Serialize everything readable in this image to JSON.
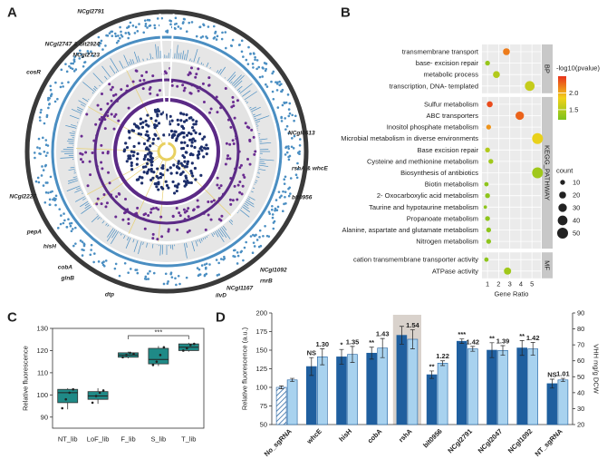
{
  "panel_labels": [
    "A",
    "B",
    "C",
    "D"
  ],
  "chart_data": [
    {
      "type": "circos",
      "labels": [
        "NCgl2791",
        "NCgl2747 & bit2924",
        "NCgl2723",
        "cosR",
        "NCgl0613",
        "rshA & whcE",
        "bit0956",
        "NCgl2227",
        "pepA",
        "hisH",
        "cobA",
        "glnB",
        "dtp",
        "ilvD",
        "NCgl1167",
        "rnrB",
        "NCgl1092"
      ]
    },
    {
      "type": "dotplot",
      "xlabel": "Gene Ratio",
      "xlim": [
        0.5,
        5.8
      ],
      "xticks": [
        1,
        2,
        3,
        4,
        5
      ],
      "facets": [
        {
          "name": "BP",
          "categories": [
            "transmembrane transport",
            "base- excision repair",
            "metabolic process",
            "transcription, DNA- templated"
          ],
          "x": [
            2.7,
            1.0,
            1.8,
            4.8
          ],
          "pvalue": [
            2.2,
            1.35,
            1.5,
            1.6
          ],
          "count": [
            20,
            10,
            20,
            40
          ]
        },
        {
          "name": "KEGG_PATHWAY",
          "categories": [
            "Sulfur metabolism",
            "ABC transporters",
            "Inositol phosphate metabolism",
            "Microbial metabolism in diverse environments",
            "Base excision repair",
            "Cysteine and methionine metabolism",
            "Biosynthesis of antibiotics",
            "Biotin metabolism",
            "2- Oxocarboxylic acid metabolism",
            "Taurine and hypotaurine metabolism",
            "Propanoate metabolism",
            "Alanine, aspartate and glutamate metabolism",
            "Nitrogen metabolism"
          ],
          "x": [
            1.2,
            3.9,
            1.1,
            5.5,
            1.0,
            1.3,
            5.5,
            0.9,
            1.0,
            0.8,
            1.0,
            1.1,
            1.1
          ],
          "pvalue": [
            2.4,
            2.3,
            2.1,
            1.8,
            1.5,
            1.4,
            1.4,
            1.3,
            1.3,
            1.3,
            1.3,
            1.3,
            1.3
          ],
          "count": [
            15,
            30,
            10,
            50,
            10,
            10,
            50,
            8,
            10,
            5,
            10,
            10,
            10
          ]
        },
        {
          "name": "MF",
          "categories": [
            "cation transmembrane transporter activity",
            "ATPase activity"
          ],
          "x": [
            0.9,
            2.8
          ],
          "pvalue": [
            1.3,
            1.4
          ],
          "count": [
            8,
            22
          ]
        }
      ],
      "colorbar": {
        "title": "-log10(pvalue)",
        "lim": [
          1.2,
          2.5
        ],
        "ticks": [
          1.5,
          {
            "value": 2,
            "label": "2.0"
          }
        ],
        "colors": [
          "#7cc31c",
          "#f2d21a",
          "#e8321c"
        ]
      },
      "size_legend": {
        "title": "count",
        "values": [
          10,
          20,
          30,
          40,
          50
        ]
      }
    },
    {
      "type": "box",
      "ylabel": "Relative fluorescence",
      "categories": [
        "NT_lib",
        "LoF_lib",
        "F_lib",
        "S_lib",
        "T_lib"
      ],
      "color": "#1f8a87",
      "ylim": [
        85,
        130
      ],
      "yticks": [
        90,
        100,
        110,
        120,
        130
      ],
      "boxes": [
        {
          "min": 93.5,
          "q1": 96.5,
          "median": 101,
          "q3": 102.5,
          "max": 103,
          "points": [
            94,
            98,
            101,
            102.5
          ]
        },
        {
          "min": 96,
          "q1": 98,
          "median": 99.5,
          "q3": 101.5,
          "max": 103,
          "points": [
            96.5,
            99.5,
            101,
            102
          ]
        },
        {
          "min": 116.5,
          "q1": 117,
          "median": 118,
          "q3": 119,
          "max": 119.5,
          "points": [
            117,
            118,
            119,
            118.5
          ]
        },
        {
          "min": 113,
          "q1": 114,
          "median": 116,
          "q3": 121,
          "max": 122,
          "points": [
            113.5,
            115,
            118,
            121.5
          ]
        },
        {
          "min": 119.5,
          "q1": 120,
          "median": 121.5,
          "q3": 123,
          "max": 123.5,
          "points": [
            120,
            121,
            122.5,
            123
          ]
        }
      ],
      "annotation": "***"
    },
    {
      "type": "bar",
      "ylabel": "Relative fluorescence (a.u.)",
      "y2label": "VHH mg/g DCW",
      "categories": [
        "No_sgRNA",
        "whcE",
        "hisH",
        "cobA",
        "rshA",
        "bit0956",
        "NCgl2791",
        "NCgl2047",
        "NCgl1092",
        "NT_sgRNA"
      ],
      "ylim": [
        50,
        200
      ],
      "yticks": [
        50,
        75,
        100,
        125,
        150,
        175,
        200
      ],
      "y2lim": [
        20,
        90
      ],
      "y2ticks": [
        20,
        30,
        40,
        50,
        60,
        70,
        80,
        90
      ],
      "series": [
        {
          "color": "#1f5f9f",
          "values": [
            100,
            128,
            141,
            146,
            170,
            117,
            162,
            150,
            153,
            105
          ],
          "errors": [
            2,
            12,
            10,
            8,
            12,
            5,
            3,
            10,
            10,
            6
          ]
        },
        {
          "color": "#a8d2ef",
          "axis": "y2",
          "values": [
            48,
            62.5,
            64,
            68,
            73.5,
            58.5,
            67.5,
            66.5,
            67.5,
            48
          ],
          "errors": [
            1,
            5,
            5,
            6,
            6,
            1.5,
            1.5,
            3,
            4,
            1
          ]
        }
      ],
      "annotations": [
        null,
        "NS",
        "*",
        "**",
        null,
        "**",
        "***",
        "**",
        "**",
        "NS"
      ],
      "fold_labels": [
        null,
        "1.30",
        "1.35",
        "1.43",
        "1.54",
        "1.22",
        "1.42",
        "1.39",
        "1.42",
        "1.01"
      ]
    }
  ]
}
